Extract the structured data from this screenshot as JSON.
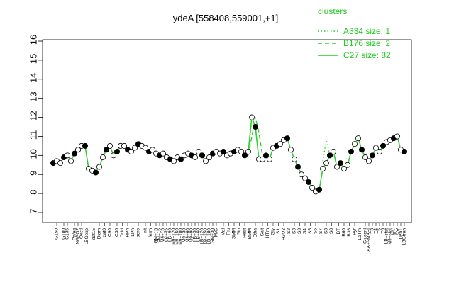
{
  "chart_data": {
    "type": "line",
    "title": "ydeA [558408,559001,+1]",
    "xlabel": "",
    "ylabel": "",
    "ylim": [
      7,
      16
    ],
    "yticks": [
      7,
      8,
      9,
      10,
      11,
      12,
      13,
      14,
      15,
      16
    ],
    "grid": false,
    "legend": {
      "title": "clusters",
      "position": "top-right",
      "color": "#22cc22",
      "entries": [
        {
          "label": "A334 size: 1",
          "style": "dotted"
        },
        {
          "label": "B176 size: 2",
          "style": "dashed"
        },
        {
          "label": "C27 size: 82",
          "style": "solid"
        }
      ]
    },
    "line_color": "#33cc33",
    "point_fill": "#000000",
    "point_open_fill": "#ffffff",
    "xlim": [
      1,
      100
    ],
    "tick_labels": [
      {
        "x": 2,
        "label": "G150"
      },
      {
        "x": 4,
        "label": "G180"
      },
      {
        "x": 5,
        "label": "G135"
      },
      {
        "x": 7,
        "label": "Pa/aq"
      },
      {
        "x": 8,
        "label": "NGSO2"
      },
      {
        "x": 9,
        "label": "Oxctl"
      },
      {
        "x": 10.5,
        "label": "LBGexp"
      },
      {
        "x": 12.5,
        "label": "dat15"
      },
      {
        "x": 14,
        "label": "Diam"
      },
      {
        "x": 15.5,
        "label": "dat0"
      },
      {
        "x": 17,
        "label": "C90"
      },
      {
        "x": 19,
        "label": "C30"
      },
      {
        "x": 20.5,
        "label": "Cold"
      },
      {
        "x": 22,
        "label": "HPh"
      },
      {
        "x": 23.5,
        "label": "LPh"
      },
      {
        "x": 25,
        "label": "aero"
      },
      {
        "x": 27,
        "label": "nit"
      },
      {
        "x": 28.5,
        "label": "ferm"
      },
      {
        "x": 30,
        "label": "GM+15"
      },
      {
        "x": 31,
        "label": "SM+15"
      },
      {
        "x": 32,
        "label": "M9+15"
      },
      {
        "x": 33,
        "label": "LB+45"
      },
      {
        "x": 34,
        "label": "LB+90"
      },
      {
        "x": 35,
        "label": "M9+120"
      },
      {
        "x": 36,
        "label": "M9+150"
      },
      {
        "x": 37,
        "label": "M9+180"
      },
      {
        "x": 38,
        "label": "M9+30"
      },
      {
        "x": 39,
        "label": "M9+60"
      },
      {
        "x": 40,
        "label": "M9+90"
      },
      {
        "x": 41,
        "label": "LB+30"
      },
      {
        "x": 42,
        "label": "LB+60"
      },
      {
        "x": 43,
        "label": "LB+120"
      },
      {
        "x": 44,
        "label": "LB+150"
      },
      {
        "x": 45,
        "label": "LB+180"
      },
      {
        "x": 46,
        "label": "SM+30"
      },
      {
        "x": 47,
        "label": "M/G"
      },
      {
        "x": 49,
        "label": "Mal"
      },
      {
        "x": 50.5,
        "label": "Fru"
      },
      {
        "x": 52,
        "label": "SMM"
      },
      {
        "x": 53.5,
        "label": "Glu"
      },
      {
        "x": 55,
        "label": "Heat"
      },
      {
        "x": 56.5,
        "label": "BMM"
      },
      {
        "x": 58,
        "label": "Etha"
      },
      {
        "x": 60,
        "label": "Salt"
      },
      {
        "x": 61.5,
        "label": "HTm"
      },
      {
        "x": 63,
        "label": "Gly"
      },
      {
        "x": 64.5,
        "label": "S1"
      },
      {
        "x": 66,
        "label": "H2O2"
      },
      {
        "x": 67.5,
        "label": "S2"
      },
      {
        "x": 69,
        "label": "S3"
      },
      {
        "x": 70.5,
        "label": "S3"
      },
      {
        "x": 72,
        "label": "S4"
      },
      {
        "x": 73.5,
        "label": "S5"
      },
      {
        "x": 75,
        "label": "S6"
      },
      {
        "x": 76.5,
        "label": "S7"
      },
      {
        "x": 78,
        "label": "S8"
      },
      {
        "x": 79.5,
        "label": "S8"
      },
      {
        "x": 81.5,
        "label": "BT"
      },
      {
        "x": 83,
        "label": "B60"
      },
      {
        "x": 84.5,
        "label": "B36"
      },
      {
        "x": 86,
        "label": "Pyr"
      },
      {
        "x": 87.5,
        "label": "LoTm"
      },
      {
        "x": 89,
        "label": "Gluconl"
      },
      {
        "x": 90,
        "label": "AA+SMAPI"
      },
      {
        "x": 91,
        "label": "T3"
      },
      {
        "x": 92,
        "label": "T4"
      },
      {
        "x": 93,
        "label": "T5"
      },
      {
        "x": 94,
        "label": "T6"
      },
      {
        "x": 95,
        "label": "LB+stat"
      },
      {
        "x": 96,
        "label": "M9+stat"
      },
      {
        "x": 97,
        "label": "BC"
      },
      {
        "x": 98,
        "label": "Sw"
      },
      {
        "x": 99,
        "label": "LPhT"
      },
      {
        "x": 100,
        "label": "LBGtran"
      }
    ],
    "series": [
      {
        "name": "C27 size: 82",
        "style": "solid",
        "x": [
          1,
          2,
          3,
          4,
          5,
          6,
          7,
          8,
          9,
          10,
          11,
          12,
          13,
          14,
          15,
          16,
          17,
          18,
          19,
          20,
          21,
          22,
          23,
          24,
          25,
          26,
          27,
          28,
          29,
          30,
          31,
          32,
          33,
          34,
          35,
          36,
          37,
          38,
          39,
          40,
          41,
          42,
          43,
          44,
          45,
          46,
          47,
          48,
          49,
          50,
          51,
          52,
          53,
          54,
          55,
          56,
          57,
          58,
          59,
          60,
          61,
          62,
          63,
          64,
          65,
          66,
          67,
          68,
          69,
          70,
          71,
          72,
          73,
          74,
          75,
          76,
          77,
          78,
          79,
          80,
          81,
          82,
          83,
          84,
          85,
          86,
          87,
          88,
          89,
          90,
          91,
          92,
          93,
          94,
          95,
          96,
          97,
          98,
          99,
          100
        ],
        "y": [
          9.6,
          9.7,
          9.6,
          9.9,
          10.0,
          9.7,
          10.1,
          10.3,
          10.5,
          10.5,
          9.3,
          9.2,
          9.1,
          9.4,
          9.9,
          10.3,
          10.5,
          10.0,
          10.2,
          10.5,
          10.5,
          10.3,
          10.2,
          10.4,
          10.6,
          10.5,
          10.4,
          10.2,
          10.3,
          10.1,
          10.0,
          10.1,
          9.9,
          9.8,
          9.7,
          9.9,
          9.8,
          10.0,
          10.1,
          10.0,
          9.9,
          10.2,
          10.0,
          9.7,
          9.9,
          10.1,
          10.2,
          10.1,
          10.2,
          10.0,
          10.1,
          10.2,
          10.3,
          10.2,
          10.0,
          10.2,
          12.0,
          11.5,
          9.8,
          9.8,
          10.0,
          9.8,
          10.4,
          10.5,
          10.6,
          10.8,
          10.9,
          10.3,
          9.8,
          9.4,
          9.0,
          8.8,
          8.6,
          8.3,
          8.1,
          8.2,
          9.3,
          9.6,
          10.0,
          10.2,
          9.4,
          9.6,
          9.3,
          9.5,
          10.2,
          10.6,
          10.9,
          10.3,
          9.9,
          9.7,
          10.0,
          10.4,
          10.2,
          10.5,
          10.7,
          10.8,
          10.9,
          11.0,
          10.3,
          10.2
        ]
      },
      {
        "name": "B176 size: 2",
        "style": "dashed",
        "x": [
          56,
          57,
          58,
          59,
          60
        ],
        "y": [
          10.0,
          11.0,
          12.0,
          11.2,
          10.0
        ]
      },
      {
        "name": "A334 size: 1",
        "style": "dotted",
        "x": [
          77,
          78,
          79
        ],
        "y": [
          9.7,
          10.8,
          10.0
        ]
      }
    ]
  }
}
